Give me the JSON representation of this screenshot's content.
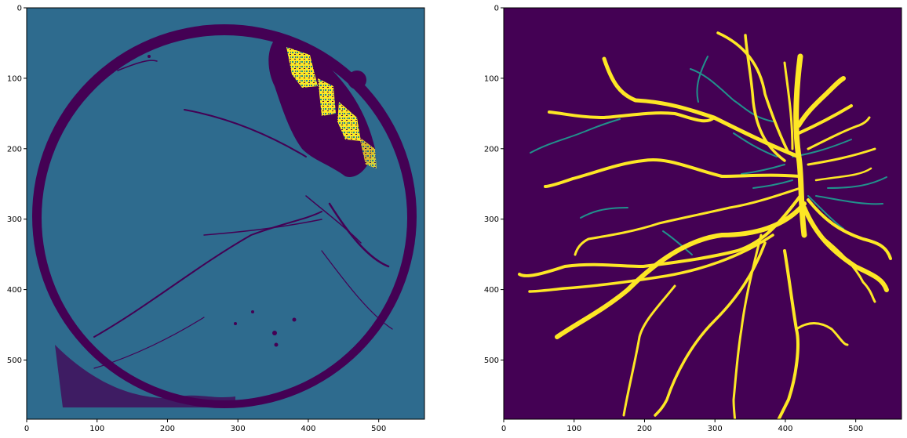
{
  "chart_data": [
    {
      "type": "heatmap",
      "title": "",
      "xlabel": "",
      "ylabel": "",
      "xlim": [
        0,
        565
      ],
      "ylim": [
        584,
        0
      ],
      "xticks": [
        "0",
        "100",
        "200",
        "300",
        "400",
        "500"
      ],
      "yticks": [
        "0",
        "100",
        "200",
        "300",
        "400",
        "500"
      ],
      "colormap": "viridis",
      "colors": {
        "background": "#2e6b8e",
        "dark": "#440154",
        "teal": "#21918c",
        "bright": "#fde725"
      },
      "content": "thresholded fundus image"
    },
    {
      "type": "heatmap",
      "title": "",
      "xlabel": "",
      "ylabel": "",
      "xlim": [
        0,
        565
      ],
      "ylim": [
        584,
        0
      ],
      "xticks": [
        "0",
        "100",
        "200",
        "300",
        "400",
        "500"
      ],
      "yticks": [
        "0",
        "100",
        "200",
        "300",
        "400",
        "500"
      ],
      "colormap": "viridis",
      "colors": {
        "background": "#440154",
        "vessel": "#fde725",
        "thin": "#21918c"
      },
      "content": "retinal vessel segmentation"
    }
  ]
}
